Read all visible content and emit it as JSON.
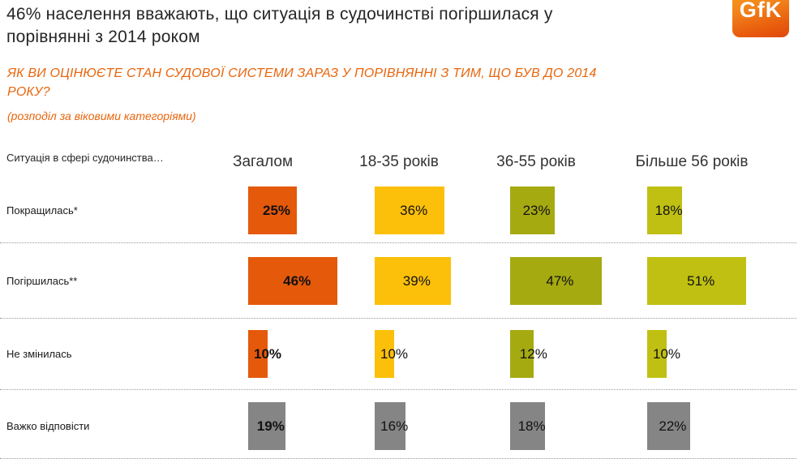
{
  "slide": {
    "title": "46% населення вважають, що ситуація в судочинстві погіршилася у\nпорівнянні з 2014 роком",
    "question": "ЯК ВИ ОЦІНЮЄТЕ СТАН СУДОВОЇ СИСТЕМИ ЗАРАЗ У ПОРІВНЯННІ З ТИМ, ЩО БУВ ДО 2014\nРОКУ?",
    "note": "(розподіл за віковими категоріями)",
    "logo_text": "GfK"
  },
  "table": {
    "corner_label": "Ситуація в сфері судочинства…",
    "columns": [
      "Загалом",
      "18-35 років",
      "36-55 років",
      "Більше 56 років"
    ],
    "rows": [
      {
        "label": "Покращилась*",
        "values": [
          25,
          36,
          23,
          18
        ]
      },
      {
        "label": "Погіршилась**",
        "values": [
          46,
          39,
          47,
          51
        ]
      },
      {
        "label": "Не змінилась",
        "values": [
          10,
          10,
          12,
          10
        ]
      },
      {
        "label": "Важко відповісти",
        "values": [
          19,
          16,
          18,
          22
        ]
      }
    ]
  },
  "colors": {
    "total": "#E5590B",
    "age_18_35": "#FCC00A",
    "age_36_55": "#A5AA10",
    "age_56_plus": "#C0C013",
    "hard_to_say": "#858585",
    "accent_text": "#E8650D"
  },
  "chart_data": {
    "type": "bar",
    "title": "46% населення вважають, що ситуація в судочинстві погіршилася у порівнянні з 2014 роком",
    "question": "ЯК ВИ ОЦІНЮЄТЕ СТАН СУДОВОЇ СИСТЕМИ ЗАРАЗ У ПОРІВНЯННІ З ТИМ, ЩО БУВ ДО 2014 РОКУ?",
    "subtitle": "(розподіл за віковими категоріями)",
    "unit": "%",
    "orientation": "horizontal",
    "categories": [
      "Покращилась*",
      "Погіршилась**",
      "Не змінилась",
      "Важко відповісти"
    ],
    "series": [
      {
        "name": "Загалом",
        "values": [
          25,
          46,
          10,
          19
        ],
        "color": "#E5590B"
      },
      {
        "name": "18-35 років",
        "values": [
          36,
          39,
          10,
          16
        ],
        "color": "#FCC00A"
      },
      {
        "name": "36-55 років",
        "values": [
          23,
          47,
          12,
          18
        ],
        "color": "#A5AA10"
      },
      {
        "name": "Більше 56 років",
        "values": [
          18,
          51,
          10,
          22
        ],
        "color": "#C0C013"
      }
    ],
    "value_labels_shown": true,
    "layout_note": "grid of mini bar charts, one column per age group; row 'Важко відповісти' drawn in gray for all columns; bar width proportional to percent"
  }
}
